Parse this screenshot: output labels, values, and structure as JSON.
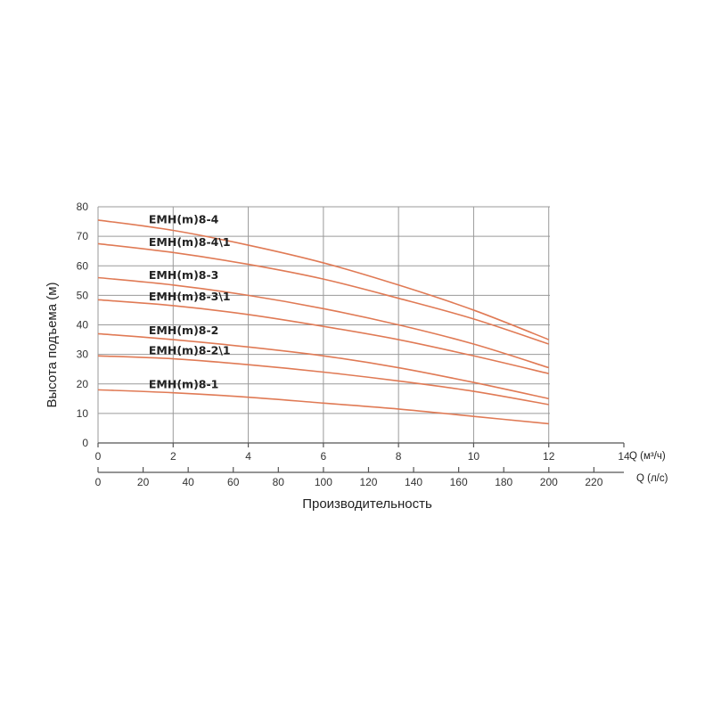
{
  "chart_data": {
    "type": "line",
    "xlabel": "Производительность",
    "ylabel": "Высота подъема (м)",
    "x_axis_primary": {
      "label": "Q (м³/ч)",
      "ticks": [
        0,
        2,
        4,
        6,
        8,
        10,
        12,
        14
      ],
      "range": [
        0,
        14
      ]
    },
    "x_axis_secondary": {
      "label": "Q (л/с)",
      "ticks": [
        0,
        20,
        40,
        60,
        80,
        100,
        120,
        140,
        160,
        180,
        200,
        220
      ],
      "range": [
        0,
        233.3
      ]
    },
    "ylim": [
      0,
      80
    ],
    "y_ticks": [
      0,
      10,
      20,
      30,
      40,
      50,
      60,
      70,
      80
    ],
    "grid": true,
    "curve_color": "#e07a55",
    "series": [
      {
        "name": "EMH(m)8-4",
        "x": [
          0,
          2,
          4,
          6,
          8,
          10,
          12
        ],
        "values": [
          75.5,
          72,
          67,
          61,
          53.5,
          45,
          35
        ]
      },
      {
        "name": "EMH(m)8-4\\1",
        "x": [
          0,
          2,
          4,
          6,
          8,
          10,
          12
        ],
        "values": [
          67.5,
          64.5,
          60.5,
          55.5,
          49,
          42,
          33.5
        ]
      },
      {
        "name": "EMH(m)8-3",
        "x": [
          0,
          2,
          4,
          6,
          8,
          10,
          12
        ],
        "values": [
          56,
          53.5,
          50,
          45.5,
          40,
          33.5,
          25.5
        ]
      },
      {
        "name": "EMH(m)8-3\\1",
        "x": [
          0,
          2,
          4,
          6,
          8,
          10,
          12
        ],
        "values": [
          48.5,
          46.5,
          43.5,
          39.5,
          35,
          29.5,
          23.5
        ]
      },
      {
        "name": "EMH(m)8-2",
        "x": [
          0,
          2,
          4,
          6,
          8,
          10,
          12
        ],
        "values": [
          37,
          35,
          32.5,
          29.5,
          25.5,
          20.5,
          15
        ]
      },
      {
        "name": "EMH(m)8-2\\1",
        "x": [
          0,
          2,
          4,
          6,
          8,
          10,
          12
        ],
        "values": [
          29.5,
          28.5,
          26.5,
          24,
          21,
          17.5,
          13
        ]
      },
      {
        "name": "EMH(m)8-1",
        "x": [
          0,
          2,
          4,
          6,
          8,
          10,
          12
        ],
        "values": [
          18,
          17,
          15.5,
          13.5,
          11.5,
          9,
          6.5
        ]
      }
    ]
  }
}
